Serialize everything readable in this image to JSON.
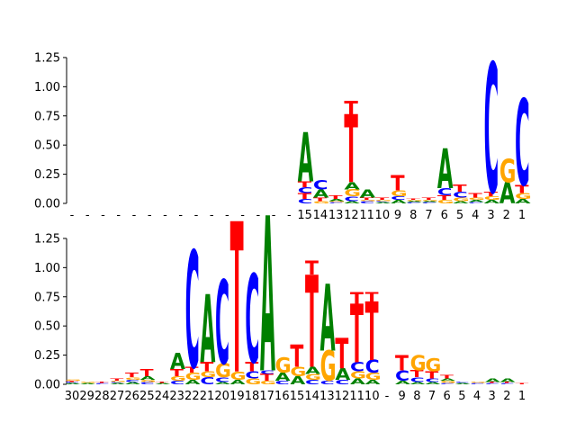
{
  "chart_data": [
    {
      "type": "sequence-logo",
      "title": "",
      "xlabel": "",
      "ylabel": "",
      "ylim": [
        0,
        1.45
      ],
      "yticks": [
        "0.00",
        "0.25",
        "0.50",
        "0.75",
        "1.00",
        "1.25"
      ],
      "xtick_labels": [
        "-",
        "-",
        "-",
        "-",
        "-",
        "-",
        "-",
        "-",
        "-",
        "-",
        "-",
        "-",
        "-",
        "-",
        "-",
        "15",
        "14",
        "13",
        "12",
        "11",
        "10",
        "9",
        "8",
        "7",
        "6",
        "5",
        "4",
        "3",
        "2",
        "1"
      ],
      "positions": [
        [],
        [],
        [],
        [],
        [],
        [],
        [],
        [],
        [],
        [],
        [],
        [],
        [],
        [],
        [],
        [
          [
            "C",
            0.04
          ],
          [
            "T",
            0.05
          ],
          [
            "C",
            0.05
          ],
          [
            "T",
            0.05
          ],
          [
            "A",
            0.42
          ]
        ],
        [
          [
            "G",
            0.02
          ],
          [
            "T",
            0.03
          ],
          [
            "A",
            0.07
          ],
          [
            "C",
            0.08
          ]
        ],
        [
          [
            "C",
            0.01
          ],
          [
            "G",
            0.01
          ],
          [
            "A",
            0.02
          ],
          [
            "T",
            0.03
          ]
        ],
        [
          [
            "A",
            0.02
          ],
          [
            "C",
            0.04
          ],
          [
            "G",
            0.06
          ],
          [
            "A",
            0.06
          ],
          [
            "T",
            0.58
          ],
          [
            "T",
            0.12
          ]
        ],
        [
          [
            "C",
            0.02
          ],
          [
            "G",
            0.01
          ],
          [
            "T",
            0.02
          ],
          [
            "A",
            0.07
          ]
        ],
        [
          [
            "A",
            0.01
          ],
          [
            "C",
            0.01
          ],
          [
            "G",
            0.01
          ],
          [
            "T",
            0.02
          ]
        ],
        [
          [
            "A",
            0.03
          ],
          [
            "C",
            0.03
          ],
          [
            "G",
            0.05
          ],
          [
            "T",
            0.13
          ]
        ],
        [
          [
            "C",
            0.01
          ],
          [
            "A",
            0.01
          ],
          [
            "G",
            0.01
          ],
          [
            "T",
            0.01
          ]
        ],
        [
          [
            "C",
            0.01
          ],
          [
            "A",
            0.01
          ],
          [
            "G",
            0.01
          ],
          [
            "T",
            0.02
          ]
        ],
        [
          [
            "G",
            0.03
          ],
          [
            "T",
            0.04
          ],
          [
            "C",
            0.06
          ],
          [
            "A",
            0.34
          ]
        ],
        [
          [
            "A",
            0.02
          ],
          [
            "G",
            0.03
          ],
          [
            "C",
            0.05
          ],
          [
            "T",
            0.06
          ]
        ],
        [
          [
            "C",
            0.01
          ],
          [
            "A",
            0.02
          ],
          [
            "G",
            0.02
          ],
          [
            "T",
            0.04
          ]
        ],
        [
          [
            "A",
            0.03
          ],
          [
            "G",
            0.03
          ],
          [
            "T",
            0.04
          ],
          [
            "C",
            1.11
          ]
        ],
        [
          [
            "A",
            0.18
          ],
          [
            "G",
            0.2
          ]
        ],
        [
          [
            "A",
            0.04
          ],
          [
            "G",
            0.05
          ],
          [
            "T",
            0.07
          ],
          [
            "C",
            0.74
          ]
        ]
      ]
    },
    {
      "type": "sequence-logo",
      "title": "",
      "xlabel": "",
      "ylabel": "",
      "ylim": [
        0,
        1.45
      ],
      "yticks": [
        "0.00",
        "0.25",
        "0.50",
        "0.75",
        "1.00",
        "1.25"
      ],
      "xtick_labels": [
        "30",
        "29",
        "28",
        "27",
        "26",
        "25",
        "24",
        "23",
        "22",
        "21",
        "20",
        "19",
        "18",
        "17",
        "16",
        "15",
        "14",
        "13",
        "12",
        "11",
        "10",
        "-",
        "9",
        "8",
        "7",
        "6",
        "5",
        "4",
        "3",
        "2",
        "1"
      ],
      "positions": [
        [
          [
            "A",
            0.01
          ],
          [
            "C",
            0.01
          ],
          [
            "T",
            0.01
          ],
          [
            "G",
            0.01
          ]
        ],
        [
          [
            "A",
            0.01
          ],
          [
            "G",
            0.01
          ]
        ],
        [
          [
            "C",
            0.01
          ],
          [
            "T",
            0.01
          ]
        ],
        [
          [
            "A",
            0.01
          ],
          [
            "C",
            0.01
          ],
          [
            "G",
            0.01
          ],
          [
            "T",
            0.02
          ]
        ],
        [
          [
            "A",
            0.02
          ],
          [
            "C",
            0.02
          ],
          [
            "G",
            0.02
          ],
          [
            "T",
            0.04
          ]
        ],
        [
          [
            "C",
            0.02
          ],
          [
            "G",
            0.02
          ],
          [
            "A",
            0.03
          ],
          [
            "T",
            0.06
          ]
        ],
        [
          [
            "A",
            0.01
          ],
          [
            "T",
            0.01
          ]
        ],
        [
          [
            "C",
            0.03
          ],
          [
            "G",
            0.04
          ],
          [
            "T",
            0.06
          ],
          [
            "A",
            0.14
          ]
        ],
        [
          [
            "A",
            0.04
          ],
          [
            "G",
            0.06
          ],
          [
            "T",
            0.05
          ],
          [
            "C",
            1.0
          ]
        ],
        [
          [
            "C",
            0.06
          ],
          [
            "G",
            0.05
          ],
          [
            "T",
            0.08
          ],
          [
            "A",
            0.58
          ]
        ],
        [
          [
            "A",
            0.02
          ],
          [
            "C",
            0.04
          ],
          [
            "G",
            0.12
          ],
          [
            "C",
            0.72
          ]
        ],
        [
          [
            "A",
            0.04
          ],
          [
            "G",
            0.07
          ],
          [
            "T",
            1.29
          ]
        ],
        [
          [
            "G",
            0.05
          ],
          [
            "C",
            0.06
          ],
          [
            "T",
            0.08
          ],
          [
            "C",
            0.76
          ]
        ],
        [
          [
            "G",
            0.03
          ],
          [
            "T",
            0.06
          ],
          [
            "C",
            0.03
          ],
          [
            "A",
            1.33
          ]
        ],
        [
          [
            "C",
            0.03
          ],
          [
            "A",
            0.07
          ],
          [
            "G",
            0.13
          ]
        ],
        [
          [
            "A",
            0.07
          ],
          [
            "G",
            0.08
          ],
          [
            "T",
            0.19
          ]
        ],
        [
          [
            "C",
            0.04
          ],
          [
            "G",
            0.05
          ],
          [
            "A",
            0.06
          ],
          [
            "T",
            0.79
          ],
          [
            "T",
            0.12
          ]
        ],
        [
          [
            "C",
            0.03
          ],
          [
            "G",
            0.26
          ],
          [
            "A",
            0.57
          ]
        ],
        [
          [
            "C",
            0.04
          ],
          [
            "A",
            0.1
          ],
          [
            "T",
            0.26
          ]
        ],
        [
          [
            "A",
            0.05
          ],
          [
            "G",
            0.06
          ],
          [
            "C",
            0.08
          ],
          [
            "T",
            0.5
          ],
          [
            "T",
            0.1
          ]
        ],
        [
          [
            "A",
            0.04
          ],
          [
            "G",
            0.06
          ],
          [
            "C",
            0.11
          ],
          [
            "T",
            0.5
          ],
          [
            "T",
            0.08
          ]
        ],
        [],
        [
          [
            "A",
            0.03
          ],
          [
            "C",
            0.09
          ],
          [
            "T",
            0.13
          ]
        ],
        [
          [
            "A",
            0.02
          ],
          [
            "C",
            0.04
          ],
          [
            "T",
            0.06
          ],
          [
            "G",
            0.13
          ]
        ],
        [
          [
            "A",
            0.02
          ],
          [
            "C",
            0.03
          ],
          [
            "T",
            0.06
          ],
          [
            "G",
            0.11
          ]
        ],
        [
          [
            "C",
            0.01
          ],
          [
            "G",
            0.02
          ],
          [
            "A",
            0.02
          ],
          [
            "T",
            0.03
          ]
        ],
        [
          [
            "A",
            0.01
          ],
          [
            "C",
            0.01
          ]
        ],
        [
          [
            "C",
            0.01
          ],
          [
            "G",
            0.01
          ]
        ],
        [
          [
            "C",
            0.01
          ],
          [
            "T",
            0.01
          ],
          [
            "A",
            0.03
          ]
        ],
        [
          [
            "C",
            0.01
          ],
          [
            "T",
            0.01
          ],
          [
            "A",
            0.03
          ]
        ],
        [
          [
            "T",
            0.01
          ]
        ]
      ]
    }
  ],
  "colors": {
    "A": "#008000",
    "C": "#0000ff",
    "G": "#ffa500",
    "T": "#ff0000"
  }
}
